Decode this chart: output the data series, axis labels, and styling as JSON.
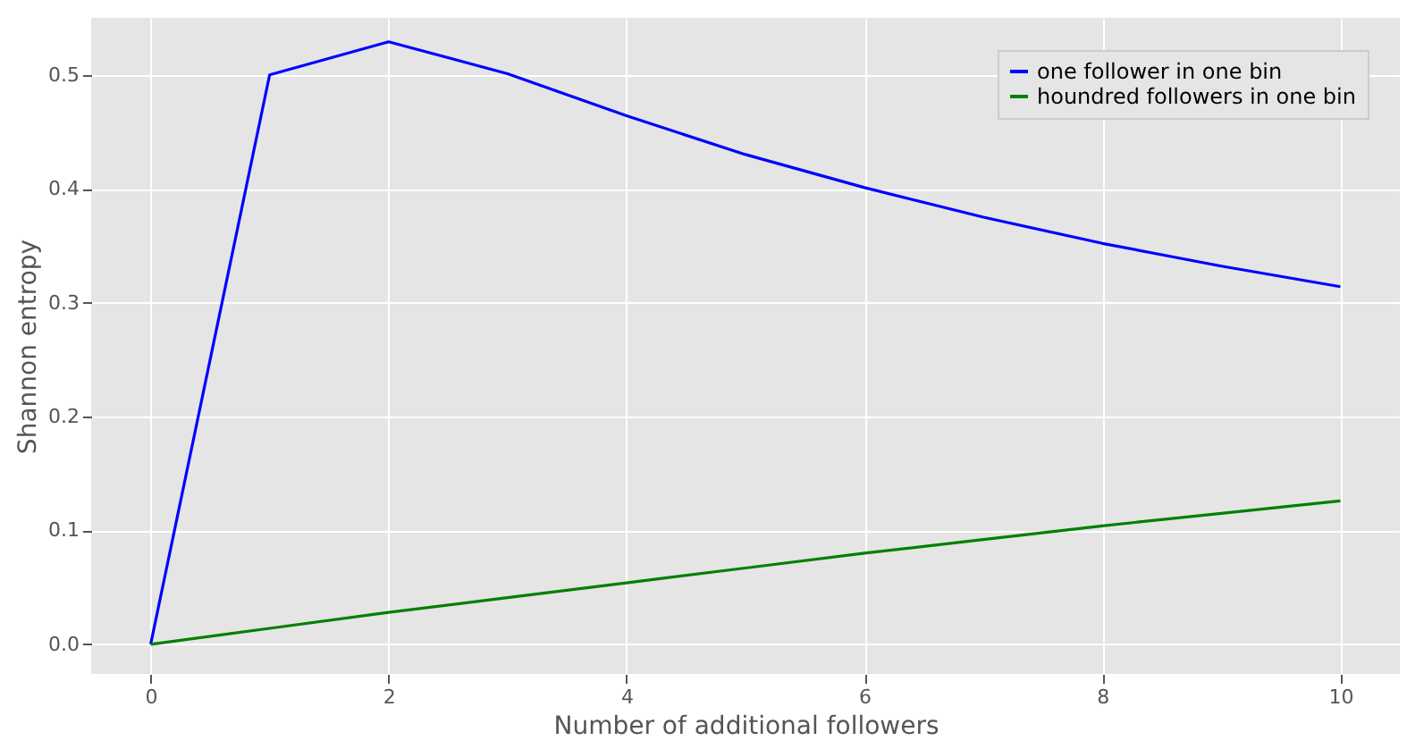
{
  "chart_data": {
    "type": "line",
    "xlabel": "Number of additional followers",
    "ylabel": "Shannon entropy",
    "x": [
      0,
      1,
      2,
      3,
      4,
      5,
      6,
      7,
      8,
      9,
      10
    ],
    "series": [
      {
        "name": "one follower in one bin",
        "color": "#0000ff",
        "values": [
          0,
          0.5,
          0.529,
          0.501,
          0.464,
          0.43,
          0.401,
          0.375,
          0.352,
          0.332,
          0.314
        ]
      },
      {
        "name": "houndred followers in one bin",
        "color": "#008000",
        "values": [
          0,
          0.014,
          0.028,
          0.041,
          0.054,
          0.067,
          0.08,
          0.092,
          0.104,
          0.115,
          0.126
        ]
      }
    ],
    "xlim": [
      -0.5,
      10.5
    ],
    "ylim": [
      -0.026,
      0.55
    ],
    "xticks": [
      0,
      2,
      4,
      6,
      8,
      10
    ],
    "yticks": [
      {
        "value": 0,
        "label": "0.0"
      },
      {
        "value": 0.1,
        "label": "0.1"
      },
      {
        "value": 0.2,
        "label": "0.2"
      },
      {
        "value": 0.3,
        "label": "0.3"
      },
      {
        "value": 0.4,
        "label": "0.4"
      },
      {
        "value": 0.5,
        "label": "0.5"
      }
    ],
    "grid": true,
    "legend": "top right",
    "marker": "none",
    "line_style": "solid"
  }
}
